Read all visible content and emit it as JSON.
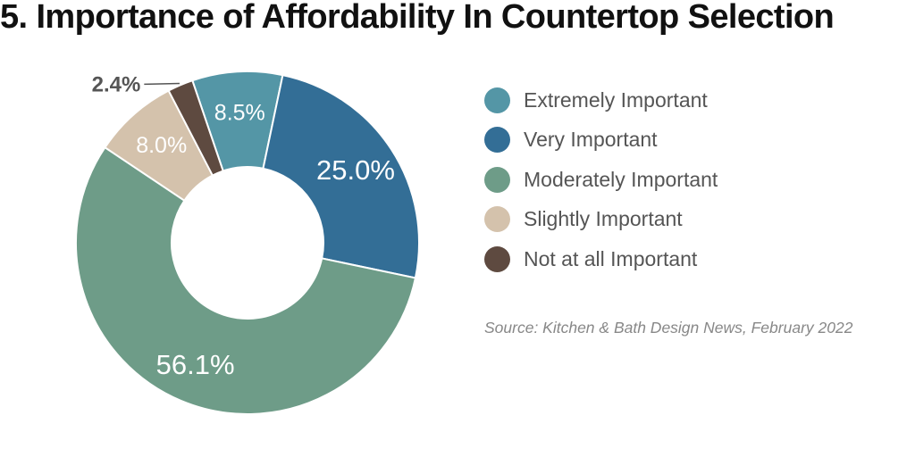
{
  "chart_data": {
    "type": "pie",
    "donut": true,
    "title": "5. Importance of Affordability In Countertop Selection",
    "categories": [
      "Extremely Important",
      "Very Important",
      "Moderately Important",
      "Slightly Important",
      "Not at all Important"
    ],
    "values": [
      8.5,
      25.0,
      56.1,
      8.0,
      2.4
    ],
    "data_labels": [
      "8.5%",
      "25.0%",
      "56.1%",
      "8.0%",
      "2.4%"
    ],
    "colors": [
      "#5496a6",
      "#336e96",
      "#6e9c88",
      "#d4c2ac",
      "#5e4a40"
    ],
    "legend_position": "right",
    "source": "Source: Kitchen & Bath Design News, February 2022"
  }
}
